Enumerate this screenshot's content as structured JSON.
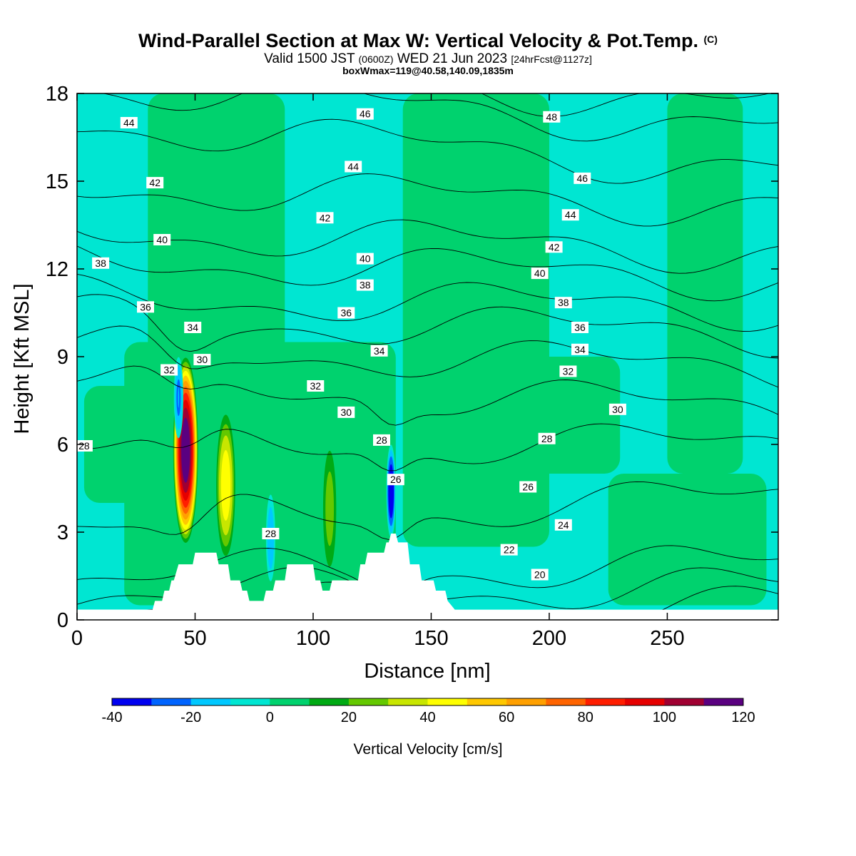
{
  "header": {
    "title": "Wind-Parallel Section at Max W: Vertical Velocity & Pot.Temp.",
    "copyright": "(C)",
    "valid_a": "Valid 1500 JST",
    "valid_zulu": "(0600Z)",
    "valid_b": "WED 21 Jun 2023",
    "forecast": "[24hrFcst@1127z]",
    "box": "boxWmax=119@40.58,140.09,1835m"
  },
  "chart_data": {
    "type": "heatmap",
    "xlabel": "Distance [nm]",
    "ylabel": "Height [Kft MSL]",
    "xlim": [
      0,
      297
    ],
    "ylim": [
      0,
      18
    ],
    "xticks": [
      0,
      50,
      100,
      150,
      200,
      250
    ],
    "yticks": [
      0,
      3,
      6,
      9,
      12,
      15,
      18
    ],
    "grid": false,
    "colorbar": {
      "title": "Vertical Velocity [cm/s]",
      "levels": [
        -40,
        -30,
        -20,
        -10,
        0,
        10,
        20,
        30,
        40,
        50,
        60,
        70,
        80,
        90,
        100,
        110,
        120
      ],
      "tick_values": [
        -40,
        -20,
        0,
        20,
        40,
        60,
        80,
        100,
        120
      ],
      "colors": [
        "#0000f0",
        "#0064ff",
        "#00c8ff",
        "#00e6d2",
        "#00d26e",
        "#00aa14",
        "#64c800",
        "#c8e600",
        "#ffff00",
        "#ffc800",
        "#ffa000",
        "#ff6400",
        "#ff1e00",
        "#e60000",
        "#a00032",
        "#5a0080"
      ],
      "background_color": "#00e6d2"
    },
    "updraft_regions": [
      {
        "x": [
          20,
          135
        ],
        "y": [
          0.5,
          9.5
        ],
        "w": 5
      },
      {
        "x": [
          3,
          30
        ],
        "y": [
          4.0,
          8.0
        ],
        "w": 5
      },
      {
        "x": [
          30,
          88
        ],
        "y": [
          8.0,
          18
        ],
        "w": 5
      },
      {
        "x": [
          138,
          200
        ],
        "y": [
          2.5,
          18
        ],
        "w": 5
      },
      {
        "x": [
          160,
          230
        ],
        "y": [
          5.0,
          9.0
        ],
        "w": 5
      },
      {
        "x": [
          225,
          292
        ],
        "y": [
          0.5,
          5.0
        ],
        "w": 5
      },
      {
        "x": [
          250,
          282
        ],
        "y": [
          5.0,
          18
        ],
        "w": 5
      }
    ],
    "vv_cores": [
      {
        "x": 46,
        "y": 5.8,
        "peak": 119,
        "half_width": 5.5,
        "half_height": 3.3,
        "sign": 1
      },
      {
        "x": 63,
        "y": 4.6,
        "peak": 45,
        "half_width": 4.5,
        "half_height": 2.7,
        "sign": 1
      },
      {
        "x": 107,
        "y": 3.8,
        "peak": 22,
        "half_width": 3.5,
        "half_height": 2.5,
        "sign": 1
      },
      {
        "x": 43,
        "y": 7.6,
        "peak": -20,
        "half_width": 2.0,
        "half_height": 1.4,
        "sign": -1
      },
      {
        "x": 133,
        "y": 4.4,
        "peak": -40,
        "half_width": 2.0,
        "half_height": 1.6,
        "sign": -1
      },
      {
        "x": 82,
        "y": 2.8,
        "peak": -15,
        "half_width": 2.0,
        "half_height": 1.5,
        "sign": -1
      }
    ],
    "terrain": {
      "x": [
        0,
        2,
        32,
        33,
        36,
        37,
        39,
        40,
        41,
        43,
        49,
        50,
        59,
        60,
        64,
        65,
        69,
        70,
        72,
        73,
        79,
        80,
        83,
        84,
        88,
        89,
        100,
        101,
        103,
        104,
        107,
        108,
        119,
        120,
        122,
        123,
        130,
        131,
        132,
        133,
        135,
        136,
        140,
        141,
        145,
        146,
        151,
        152,
        156,
        157,
        160
      ],
      "y": [
        0.35,
        0.35,
        0.35,
        0.65,
        0.65,
        1.0,
        1.0,
        1.35,
        1.35,
        1.9,
        1.9,
        2.3,
        2.3,
        1.9,
        1.9,
        1.35,
        1.35,
        1.0,
        1.0,
        0.65,
        0.65,
        1.0,
        1.0,
        1.35,
        1.35,
        1.9,
        1.9,
        1.35,
        1.35,
        1.0,
        1.0,
        1.35,
        1.35,
        1.9,
        1.9,
        2.3,
        2.3,
        2.65,
        2.65,
        2.95,
        2.95,
        2.65,
        2.65,
        1.9,
        1.9,
        1.35,
        1.35,
        1.0,
        1.0,
        0.65,
        0.35
      ]
    },
    "theta_contours": [
      {
        "value": 20,
        "y_left": 0.45,
        "y_right": 0.45
      },
      {
        "value": 22,
        "y_left": 0.9,
        "y_right": 1.1
      },
      {
        "value": 24,
        "y_left": 1.5,
        "y_right": 1.9
      },
      {
        "value": 26,
        "y_left": 3.3,
        "y_right": 4.2
      },
      {
        "value": 28,
        "y_left": 6.0,
        "y_right": 6.0
      },
      {
        "value": 30,
        "y_left": 8.2,
        "y_right": 7.2
      },
      {
        "value": 32,
        "y_left": 9.3,
        "y_right": 8.6
      },
      {
        "value": 34,
        "y_left": 10.3,
        "y_right": 9.8
      },
      {
        "value": 36,
        "y_left": 11.0,
        "y_right": 10.7
      },
      {
        "value": 38,
        "y_left": 12.3,
        "y_right": 11.7
      },
      {
        "value": 40,
        "y_left": 13.3,
        "y_right": 12.6
      },
      {
        "value": 42,
        "y_left": 14.8,
        "y_right": 14.2
      },
      {
        "value": 44,
        "y_left": 17.0,
        "y_right": 15.4
      },
      {
        "value": 46,
        "y_left": 18.3,
        "y_right": 16.8
      },
      {
        "value": 48,
        "y_left": 19.0,
        "y_right": 17.6
      }
    ],
    "contour_labels": [
      {
        "text": "44",
        "x": 22,
        "y": 17.0
      },
      {
        "text": "46",
        "x": 122,
        "y": 17.3
      },
      {
        "text": "48",
        "x": 201,
        "y": 17.2
      },
      {
        "text": "42",
        "x": 33,
        "y": 14.95
      },
      {
        "text": "44",
        "x": 117,
        "y": 15.5
      },
      {
        "text": "46",
        "x": 214,
        "y": 15.1
      },
      {
        "text": "42",
        "x": 105,
        "y": 13.75
      },
      {
        "text": "44",
        "x": 209,
        "y": 13.85
      },
      {
        "text": "40",
        "x": 36,
        "y": 13.0
      },
      {
        "text": "42",
        "x": 202,
        "y": 12.75
      },
      {
        "text": "38",
        "x": 10,
        "y": 12.2
      },
      {
        "text": "40",
        "x": 122,
        "y": 12.35
      },
      {
        "text": "40",
        "x": 196,
        "y": 11.85
      },
      {
        "text": "38",
        "x": 122,
        "y": 11.45
      },
      {
        "text": "38",
        "x": 206,
        "y": 10.85
      },
      {
        "text": "36",
        "x": 29,
        "y": 10.7
      },
      {
        "text": "36",
        "x": 114,
        "y": 10.5
      },
      {
        "text": "34",
        "x": 49,
        "y": 10.0
      },
      {
        "text": "36",
        "x": 213,
        "y": 10.0
      },
      {
        "text": "34",
        "x": 128,
        "y": 9.2
      },
      {
        "text": "34",
        "x": 213,
        "y": 9.25
      },
      {
        "text": "32",
        "x": 39,
        "y": 8.55
      },
      {
        "text": "30",
        "x": 53,
        "y": 8.9
      },
      {
        "text": "32",
        "x": 208,
        "y": 8.5
      },
      {
        "text": "32",
        "x": 101,
        "y": 8.0
      },
      {
        "text": "30",
        "x": 229,
        "y": 7.2
      },
      {
        "text": "30",
        "x": 114,
        "y": 7.1
      },
      {
        "text": "28",
        "x": 129,
        "y": 6.15
      },
      {
        "text": "28",
        "x": 199,
        "y": 6.2
      },
      {
        "text": "28",
        "x": 3,
        "y": 5.95
      },
      {
        "text": "26",
        "x": 135,
        "y": 4.8
      },
      {
        "text": "26",
        "x": 191,
        "y": 4.55
      },
      {
        "text": "24",
        "x": 206,
        "y": 3.25
      },
      {
        "text": "28",
        "x": 82,
        "y": 2.95
      },
      {
        "text": "22",
        "x": 183,
        "y": 2.4
      },
      {
        "text": "20",
        "x": 196,
        "y": 1.55
      }
    ]
  }
}
